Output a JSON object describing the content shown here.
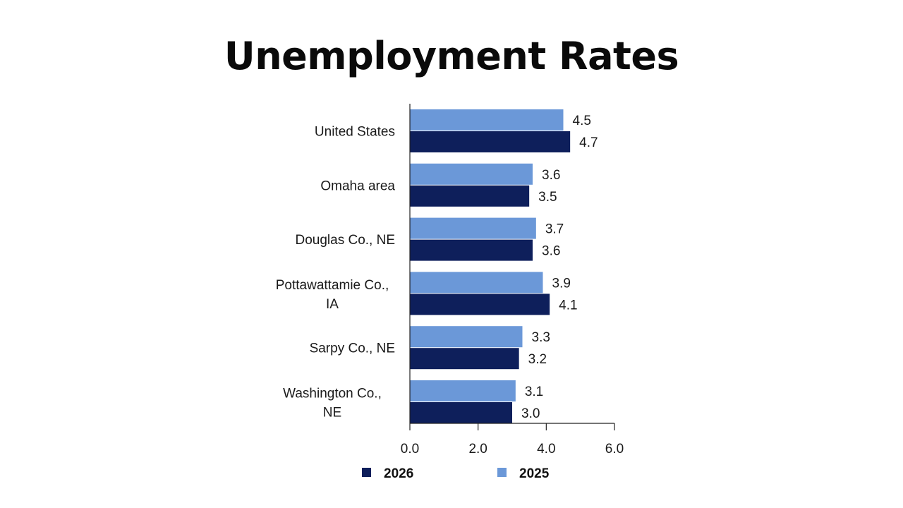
{
  "colors": {
    "series_2026": "#0e1f5b",
    "series_2025": "#6b98d8",
    "axis": "#222222"
  },
  "chart_data": {
    "type": "bar",
    "orientation": "horizontal",
    "title": "Unemployment Rates",
    "categories": [
      [
        "United States"
      ],
      [
        "Omaha area"
      ],
      [
        "Douglas Co., NE"
      ],
      [
        "Pottawattamie Co.,",
        "IA"
      ],
      [
        "Sarpy Co., NE"
      ],
      [
        "Washington Co.,",
        "NE"
      ]
    ],
    "series": [
      {
        "name": "2025",
        "values": [
          4.5,
          3.6,
          3.7,
          3.9,
          3.3,
          3.1
        ],
        "labels": [
          "4.5",
          "3.6",
          "3.7",
          "3.9",
          "3.3",
          "3.1"
        ]
      },
      {
        "name": "2026",
        "values": [
          4.7,
          3.5,
          3.6,
          4.1,
          3.2,
          3.0
        ],
        "labels": [
          "4.7",
          "3.5",
          "3.6",
          "4.1",
          "3.2",
          "3.0"
        ]
      }
    ],
    "xlim": [
      0,
      6
    ],
    "xticks": [
      "0.0",
      "2.0",
      "4.0",
      "6.0"
    ],
    "legend": {
      "placement": "bottom",
      "order": [
        "2026",
        "2025"
      ]
    },
    "grid": false
  }
}
